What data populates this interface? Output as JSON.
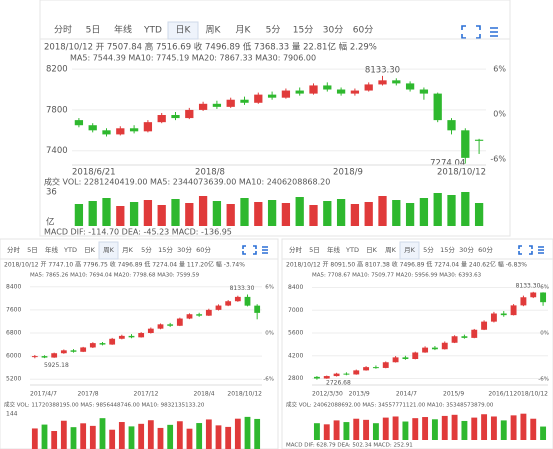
{
  "chart_data": [
    {
      "type": "candlestick",
      "tabs": [
        "分时",
        "5日",
        "年线",
        "YTD",
        "日K",
        "周K",
        "月K",
        "5分",
        "15分",
        "30分",
        "60分"
      ],
      "active_tab": 4,
      "info": "2018/10/12 开 7507.84 高 7516.69 收 7496.89 低 7368.33 量 22.81亿 幅 2.29%",
      "ma_line": "MA5: 7544.39   MA10: 7745.19   MA20: 7867.33   MA30: 7906.00",
      "high_label": "8133.30",
      "low_label": "7274.04",
      "pct_labels": [
        "6%",
        "0%",
        "-6%"
      ],
      "dates": [
        "2018/6/21",
        "2018/8",
        "2018/9",
        "2018/10/12"
      ],
      "vol_line": "成交  VOL: 2281240419.00   MA5: 2344073639.00   MA10: 2406208868.20",
      "vol_axis": [
        "36",
        "亿"
      ],
      "macd_line": "MACD  DIF: -114.70   DEA: -45.23   MACD: -136.95",
      "ylim": [
        7260,
        8260
      ],
      "yticks": [
        7400,
        7800,
        8200
      ],
      "vlim": [
        0,
        36
      ],
      "candles": [
        [
          7700,
          7650,
          7720,
          7630
        ],
        [
          7650,
          7600,
          7670,
          7580
        ],
        [
          7600,
          7560,
          7620,
          7540
        ],
        [
          7560,
          7620,
          7640,
          7550
        ],
        [
          7620,
          7590,
          7650,
          7570
        ],
        [
          7590,
          7680,
          7700,
          7580
        ],
        [
          7680,
          7750,
          7770,
          7670
        ],
        [
          7750,
          7720,
          7780,
          7700
        ],
        [
          7720,
          7800,
          7820,
          7710
        ],
        [
          7800,
          7860,
          7880,
          7790
        ],
        [
          7860,
          7830,
          7890,
          7810
        ],
        [
          7830,
          7900,
          7920,
          7820
        ],
        [
          7900,
          7870,
          7930,
          7850
        ],
        [
          7870,
          7950,
          7970,
          7860
        ],
        [
          7950,
          7920,
          7980,
          7900
        ],
        [
          7920,
          7990,
          8010,
          7910
        ],
        [
          7990,
          7960,
          8020,
          7940
        ],
        [
          7960,
          8040,
          8060,
          7950
        ],
        [
          8040,
          8000,
          8070,
          7980
        ],
        [
          8000,
          7960,
          8020,
          7940
        ],
        [
          7960,
          7990,
          8010,
          7940
        ],
        [
          7990,
          8050,
          8070,
          7980
        ],
        [
          8050,
          8090,
          8133.3,
          8040
        ],
        [
          8090,
          8060,
          8110,
          8040
        ],
        [
          8060,
          8000,
          8080,
          7980
        ],
        [
          8000,
          7960,
          8020,
          7900
        ],
        [
          7960,
          7700,
          7970,
          7680
        ],
        [
          7700,
          7600,
          7720,
          7560
        ],
        [
          7600,
          7330,
          7620,
          7274.04
        ],
        [
          7507.84,
          7496.89,
          7516.69,
          7368.33
        ]
      ],
      "volumes": [
        22,
        25,
        28,
        20,
        24,
        26,
        21,
        27,
        23,
        30,
        25,
        22,
        28,
        24,
        26,
        23,
        29,
        21,
        25,
        27,
        22,
        24,
        30,
        26,
        23,
        28,
        33,
        31,
        34,
        23
      ]
    },
    {
      "type": "candlestick",
      "tabs": [
        "分时",
        "5日",
        "年线",
        "YTD",
        "日K",
        "周K",
        "月K",
        "5分",
        "15分",
        "30分",
        "60分"
      ],
      "active_tab": 5,
      "info": "2018/10/12 开 7747.10 高 7796.75 收 7496.89 低 7274.04 量 117.20亿 幅 -3.74%",
      "ma_line": "MA5: 7865.26  MA10: 7694.04  MA20: 7798.68  MA30: 7599.59",
      "high_label": "8133.30",
      "low_label": "5925.18",
      "pct_labels": [
        "6%",
        "0%",
        "-6%"
      ],
      "dates": [
        "2017/4/7",
        "2017/8",
        "2017/12",
        "2018/4",
        "2018/10/12"
      ],
      "vol_line": "成交  VOL: 11720388195.00  MA5: 9856448746.00  MA10: 9832135133.20",
      "vol_axis": [
        "144"
      ],
      "ylim": [
        5000,
        8600
      ],
      "yticks": [
        5200,
        6000,
        6800,
        7600,
        8400
      ],
      "vlim": [
        0,
        144
      ],
      "candles": [
        [
          5980,
          6000,
          6040,
          5925.18
        ],
        [
          6000,
          5950,
          6030,
          5930
        ],
        [
          5950,
          6100,
          6120,
          5940
        ],
        [
          6100,
          6200,
          6230,
          6080
        ],
        [
          6200,
          6150,
          6240,
          6120
        ],
        [
          6150,
          6300,
          6320,
          6140
        ],
        [
          6300,
          6450,
          6480,
          6280
        ],
        [
          6450,
          6400,
          6490,
          6370
        ],
        [
          6400,
          6600,
          6630,
          6390
        ],
        [
          6600,
          6700,
          6740,
          6580
        ],
        [
          6700,
          6650,
          6760,
          6620
        ],
        [
          6650,
          6800,
          6830,
          6640
        ],
        [
          6800,
          6950,
          6990,
          6780
        ],
        [
          6950,
          7100,
          7130,
          6930
        ],
        [
          7100,
          7050,
          7150,
          7010
        ],
        [
          7050,
          7300,
          7330,
          7040
        ],
        [
          7300,
          7450,
          7480,
          7280
        ],
        [
          7450,
          7400,
          7500,
          7360
        ],
        [
          7400,
          7600,
          7640,
          7390
        ],
        [
          7600,
          7750,
          7790,
          7580
        ],
        [
          7750,
          7900,
          7940,
          7730
        ],
        [
          7900,
          8050,
          8090,
          7880
        ],
        [
          8050,
          7747,
          8133.3,
          7720
        ],
        [
          7747.1,
          7496.89,
          7796.75,
          7274.04
        ]
      ],
      "volumes": [
        80,
        95,
        70,
        110,
        85,
        100,
        90,
        120,
        75,
        105,
        88,
        98,
        112,
        82,
        94,
        108,
        79,
        101,
        115,
        92,
        86,
        118,
        125,
        117
      ]
    },
    {
      "type": "candlestick",
      "tabs": [
        "分时",
        "5日",
        "年线",
        "YTD",
        "日K",
        "周K",
        "月K",
        "5分",
        "15分",
        "30分",
        "60分"
      ],
      "active_tab": 6,
      "info": "2018/10/12 开 8091.50 高 8107.38 收 7496.89 低 7274.04 量 240.62亿 幅 -6.83%",
      "ma_line": "MA5: 7708.67  MA10: 7509.77  MA20: 5956.99  MA30: 6393.63",
      "high_label": "8133.30",
      "low_label": "2726.68",
      "pct_labels": [
        "6%",
        "0%",
        "-6%"
      ],
      "dates": [
        "2012/3/30",
        "2013/9",
        "2014/7",
        "2015/9",
        "2016/11",
        "2018/10/12"
      ],
      "vol_line": "成交  VOL: 24062088692.00  MA5: 34557771121.00  MA10: 35348573879.00",
      "macd_line": "MACD  DIF: 628.79  DEA: 502.34  MACD: 252.91",
      "ylim": [
        2400,
        8800
      ],
      "yticks": [
        2800,
        4200,
        5600,
        7000,
        8400
      ],
      "vlim": [
        0,
        500
      ],
      "candles": [
        [
          2900,
          2800,
          2950,
          2726.68
        ],
        [
          2800,
          2950,
          2980,
          2780
        ],
        [
          2950,
          3100,
          3150,
          2920
        ],
        [
          3100,
          3050,
          3180,
          3000
        ],
        [
          3050,
          3300,
          3350,
          3030
        ],
        [
          3300,
          3500,
          3560,
          3280
        ],
        [
          3500,
          3450,
          3600,
          3400
        ],
        [
          3450,
          3800,
          3850,
          3430
        ],
        [
          3800,
          4100,
          4180,
          3780
        ],
        [
          4100,
          4000,
          4200,
          3950
        ],
        [
          4000,
          4400,
          4450,
          3980
        ],
        [
          4400,
          4700,
          4780,
          4380
        ],
        [
          4700,
          4600,
          4800,
          4550
        ],
        [
          4600,
          5000,
          5080,
          4580
        ],
        [
          5000,
          5400,
          5460,
          4980
        ],
        [
          5400,
          5300,
          5500,
          5250
        ],
        [
          5300,
          5800,
          5850,
          5280
        ],
        [
          5800,
          6300,
          6380,
          5780
        ],
        [
          6300,
          6800,
          6900,
          6250
        ],
        [
          6800,
          6700,
          6950,
          6600
        ],
        [
          6700,
          7300,
          7380,
          6680
        ],
        [
          7300,
          7800,
          7900,
          7250
        ],
        [
          7800,
          8091.5,
          8133.3,
          7750
        ],
        [
          8091.5,
          7496.89,
          8107.38,
          7274.04
        ]
      ],
      "volumes": [
        300,
        280,
        350,
        320,
        380,
        360,
        300,
        400,
        420,
        330,
        390,
        410,
        370,
        430,
        450,
        340,
        400,
        460,
        420,
        350,
        440,
        470,
        380,
        240
      ]
    }
  ]
}
